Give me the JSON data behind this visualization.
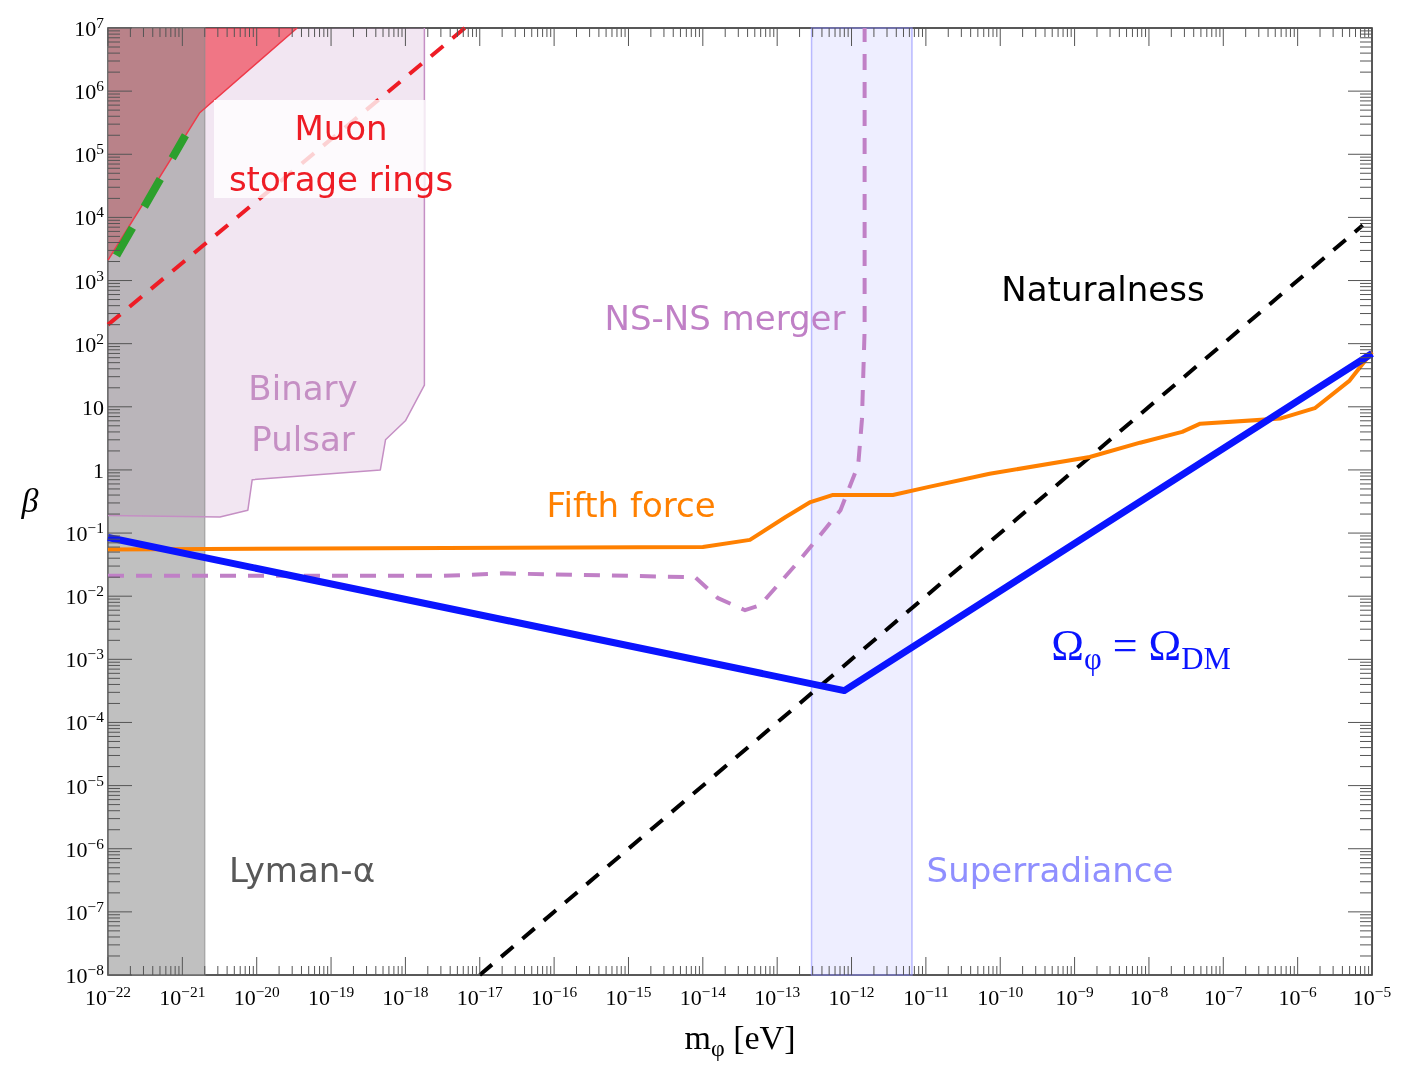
{
  "chart_data": {
    "type": "line",
    "xlabel": "m$_{φ}$ [eV]",
    "ylabel": "β",
    "log": "xy",
    "xlim": [
      1e-22,
      1e-05
    ],
    "ylim": [
      1e-08,
      10000000.0
    ],
    "xticks": [
      {
        "value": 1e-22,
        "label": "10$^{−22}$"
      },
      {
        "value": 1e-21,
        "label": "10$^{−21}$"
      },
      {
        "value": 1e-20,
        "label": "10$^{−20}$"
      },
      {
        "value": 1e-19,
        "label": "10$^{−19}$"
      },
      {
        "value": 1e-18,
        "label": "10$^{−18}$"
      },
      {
        "value": 1e-17,
        "label": "10$^{−17}$"
      },
      {
        "value": 1e-16,
        "label": "10$^{−16}$"
      },
      {
        "value": 1e-15,
        "label": "10$^{−15}$"
      },
      {
        "value": 1e-14,
        "label": "10$^{−14}$"
      },
      {
        "value": 1e-13,
        "label": "10$^{−13}$"
      },
      {
        "value": 1e-12,
        "label": "10$^{−12}$"
      },
      {
        "value": 1e-11,
        "label": "10$^{−11}$"
      },
      {
        "value": 1e-10,
        "label": "10$^{−10}$"
      },
      {
        "value": 1e-09,
        "label": "10$^{−9}$"
      },
      {
        "value": 1e-08,
        "label": "10$^{−8}$"
      },
      {
        "value": 1e-07,
        "label": "10$^{−7}$"
      },
      {
        "value": 1e-06,
        "label": "10$^{−6}$"
      },
      {
        "value": 1e-05,
        "label": "10$^{−5}$"
      }
    ],
    "yticks": [
      {
        "value": 1e-08,
        "label": "10$^{−8}$"
      },
      {
        "value": 1e-07,
        "label": "10$^{−7}$"
      },
      {
        "value": 1e-06,
        "label": "10$^{−6}$"
      },
      {
        "value": 1e-05,
        "label": "10$^{−5}$"
      },
      {
        "value": 0.0001,
        "label": "10$^{−4}$"
      },
      {
        "value": 0.001,
        "label": "10$^{−3}$"
      },
      {
        "value": 0.01,
        "label": "10$^{−2}$"
      },
      {
        "value": 0.1,
        "label": "10$^{−1}$"
      },
      1,
      10,
      {
        "value": 100,
        "label": "10$^{2}$"
      },
      {
        "value": 1000,
        "label": "10$^{3}$"
      },
      {
        "value": 10000,
        "label": "10$^{4}$"
      },
      {
        "value": 100000,
        "label": "10$^{5}$"
      },
      {
        "value": 1000000,
        "label": "10$^{6}$"
      },
      {
        "value": 10000000,
        "label": "10$^{7}$"
      }
    ],
    "bands": [
      {
        "axis": "x",
        "from": 1e-22,
        "to": 2e-21,
        "label": "Lyman-α",
        "color": "#8c8c8c"
      },
      {
        "axis": "x",
        "from": 2.9e-13,
        "to": 6.5e-12,
        "label": "Superradiance",
        "color": "#8f8fff"
      }
    ],
    "series": [
      {
        "name": "Binary Pulsar",
        "color": "#c58fc4",
        "x": [
          1e-22,
          3.2e-21,
          7.6e-21,
          8.7e-21,
          4.6e-19,
          5.4e-19,
          1e-18,
          1.8e-18,
          1.8e-18
        ],
        "values": [
          0.19,
          0.18,
          0.23,
          0.7,
          1,
          3,
          6,
          22,
          10000000.0
        ],
        "lower": [
          0.19,
          0.18,
          0.23,
          0.7,
          1,
          3,
          6,
          22,
          10000000.0
        ],
        "upper": [
          10000000.0,
          10000000.0,
          10000000.0,
          10000000.0,
          10000000.0,
          10000000.0,
          10000000.0,
          10000000.0,
          10000000.0
        ]
      },
      {
        "color": "#ee3a4a",
        "x": [
          1e-22,
          1.7e-21,
          3.5e-20
        ],
        "values": [
          2100,
          450000,
          10000000.0
        ],
        "lower": [
          2100,
          450000,
          10000000.0
        ],
        "upper": [
          10000000.0,
          10000000.0,
          10000000.0
        ]
      },
      {
        "name": "Muon storage rings",
        "color": "#ee1c25",
        "line_style": "dashed",
        "x": [
          1e-22,
          6.3e-18
        ],
        "values": [
          200,
          10000000.0
        ]
      },
      {
        "color": "#2ca02c",
        "line_style": "dashed",
        "x": [
          1.3e-22,
          1.1e-21
        ],
        "values": [
          2500,
          200000
        ]
      },
      {
        "name": "NS-NS merger",
        "color": "#c080c6",
        "line_style": "dashed",
        "x": [
          1e-22,
          3.2e-18,
          2e-17,
          7.9e-15,
          1.6e-14,
          3.7e-14,
          5.9e-14,
          2e-13,
          7.1e-13,
          1.23e-12,
          1.38e-12,
          1.5e-12,
          1.5e-12
        ],
        "values": [
          0.021,
          0.021,
          0.023,
          0.02,
          0.0093,
          0.006,
          0.0072,
          0.037,
          0.23,
          1.2,
          6.2,
          166,
          10000000.0
        ]
      },
      {
        "name": "Naturalness",
        "color": "#000000",
        "line_style": "dashed",
        "x": [
          1e-17,
          7.5e-06
        ],
        "values": [
          1e-08,
          7500
        ]
      },
      {
        "name": "Fifth force",
        "color": "#ff8000",
        "line_style": "solid",
        "x": [
          1e-22,
          1e-14,
          4.3e-14,
          1.3e-13,
          2.8e-13,
          5.5e-13,
          3.6e-12,
          1.1e-11,
          7.2e-11,
          1.6e-09,
          7.6e-09,
          2.8e-08,
          4.9e-08,
          5.8e-07,
          1.7e-06,
          5e-06,
          1e-05
        ],
        "values": [
          0.055,
          0.06,
          0.078,
          0.18,
          0.31,
          0.4,
          0.4,
          0.54,
          0.87,
          1.6,
          2.7,
          4,
          5.4,
          6.5,
          9.5,
          26,
          74
        ]
      },
      {
        "name": "Ω$_{φ}$ = Ω$_{DM}$",
        "color": "#0a14ff",
        "line_style": "solid",
        "x": [
          1e-22,
          8e-13,
          1e-05
        ],
        "values": [
          0.085,
          0.00032,
          70
        ]
      }
    ]
  }
}
